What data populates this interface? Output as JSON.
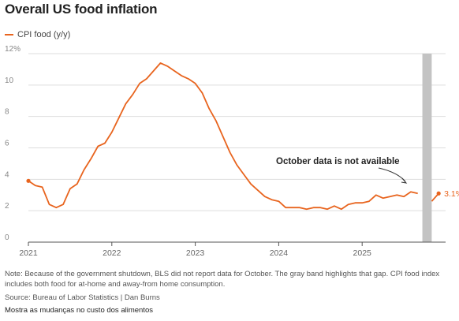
{
  "title": "Overall US food inflation",
  "legend_label": "CPI food (y/y)",
  "note": "Note: Because of the government shutdown, BLS did not report data for October. The gray band highlights that gap. CPI food index includes both food for at-home and away-from home consumption.",
  "source": "Source: Bureau of Labor Statistics | Dan Burns",
  "footer": "Mostra as mudanças no custo dos alimentos",
  "colors": {
    "line": "#e8641e",
    "band": "#c3c3c3",
    "grid": "#dddddd",
    "axis": "#555555",
    "tick": "#888888"
  },
  "chart_data": {
    "type": "line",
    "ylim": [
      0,
      12
    ],
    "y_ticks": [
      0,
      2,
      4,
      6,
      8,
      10,
      12
    ],
    "y_tick_labels": [
      "0",
      "2",
      "4",
      "6",
      "8",
      "10",
      "12%"
    ],
    "x_range": [
      "2021-01",
      "2026-01"
    ],
    "x_ticks": [
      "2021-01",
      "2022-01",
      "2023-01",
      "2024-01",
      "2025-01"
    ],
    "x_tick_labels": [
      "2021",
      "2022",
      "2023",
      "2024",
      "2025"
    ],
    "shaded_band": [
      "2025-10",
      "2025-11"
    ],
    "annotation": {
      "text": "October data is not available"
    },
    "end_label": "3.1%",
    "series": [
      {
        "name": "CPI food (y/y)",
        "points": [
          [
            "2021-01",
            3.9
          ],
          [
            "2021-02",
            3.6
          ],
          [
            "2021-03",
            3.5
          ],
          [
            "2021-04",
            2.4
          ],
          [
            "2021-05",
            2.2
          ],
          [
            "2021-06",
            2.4
          ],
          [
            "2021-07",
            3.4
          ],
          [
            "2021-08",
            3.7
          ],
          [
            "2021-09",
            4.6
          ],
          [
            "2021-10",
            5.3
          ],
          [
            "2021-11",
            6.1
          ],
          [
            "2021-12",
            6.3
          ],
          [
            "2022-01",
            7.0
          ],
          [
            "2022-02",
            7.9
          ],
          [
            "2022-03",
            8.8
          ],
          [
            "2022-04",
            9.4
          ],
          [
            "2022-05",
            10.1
          ],
          [
            "2022-06",
            10.4
          ],
          [
            "2022-07",
            10.9
          ],
          [
            "2022-08",
            11.4
          ],
          [
            "2022-09",
            11.2
          ],
          [
            "2022-10",
            10.9
          ],
          [
            "2022-11",
            10.6
          ],
          [
            "2022-12",
            10.4
          ],
          [
            "2023-01",
            10.1
          ],
          [
            "2023-02",
            9.5
          ],
          [
            "2023-03",
            8.5
          ],
          [
            "2023-04",
            7.7
          ],
          [
            "2023-05",
            6.7
          ],
          [
            "2023-06",
            5.7
          ],
          [
            "2023-07",
            4.9
          ],
          [
            "2023-08",
            4.3
          ],
          [
            "2023-09",
            3.7
          ],
          [
            "2023-10",
            3.3
          ],
          [
            "2023-11",
            2.9
          ],
          [
            "2023-12",
            2.7
          ],
          [
            "2024-01",
            2.6
          ],
          [
            "2024-02",
            2.2
          ],
          [
            "2024-03",
            2.2
          ],
          [
            "2024-04",
            2.2
          ],
          [
            "2024-05",
            2.1
          ],
          [
            "2024-06",
            2.2
          ],
          [
            "2024-07",
            2.2
          ],
          [
            "2024-08",
            2.1
          ],
          [
            "2024-09",
            2.3
          ],
          [
            "2024-10",
            2.1
          ],
          [
            "2024-11",
            2.4
          ],
          [
            "2024-12",
            2.5
          ],
          [
            "2025-01",
            2.5
          ],
          [
            "2025-02",
            2.6
          ],
          [
            "2025-03",
            3.0
          ],
          [
            "2025-04",
            2.8
          ],
          [
            "2025-05",
            2.9
          ],
          [
            "2025-06",
            3.0
          ],
          [
            "2025-07",
            2.9
          ],
          [
            "2025-08",
            3.2
          ],
          [
            "2025-09",
            3.1
          ],
          [
            "2025-11",
            2.6
          ],
          [
            "2025-12",
            3.1
          ]
        ]
      }
    ]
  }
}
